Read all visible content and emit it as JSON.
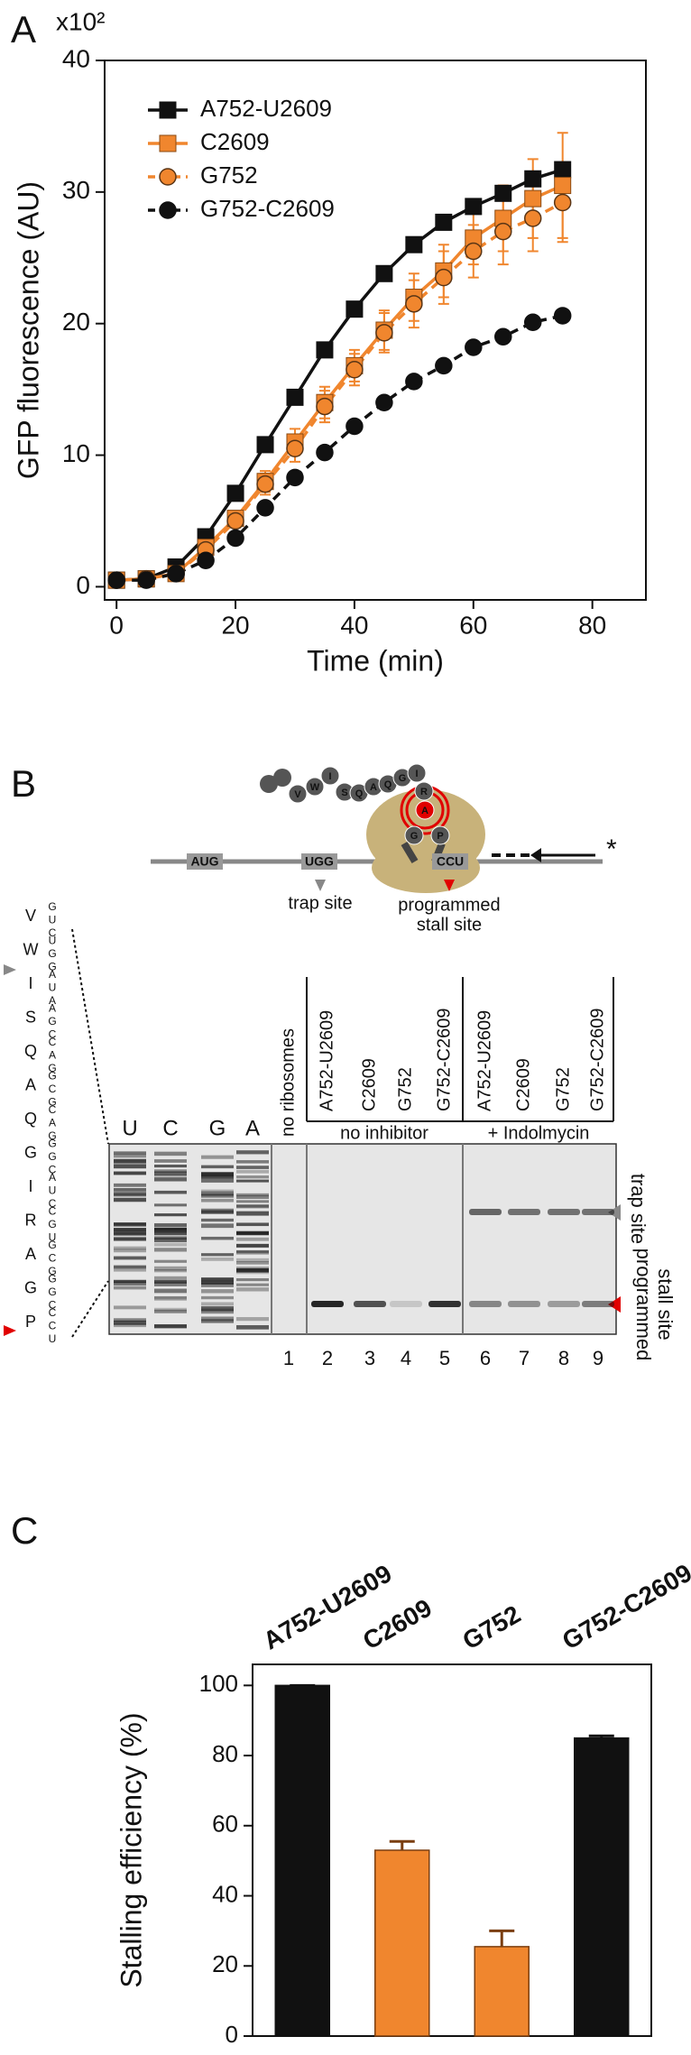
{
  "chart_data": [
    {
      "type": "line",
      "panel_label": "A",
      "y_multiplier": "x10²",
      "x_label": "Time (min)",
      "y_label": "GFP fluorescence (AU)",
      "x": [
        0,
        5,
        10,
        15,
        20,
        25,
        30,
        35,
        40,
        45,
        50,
        55,
        60,
        65,
        70,
        75
      ],
      "xlim": [
        -2,
        89
      ],
      "xticks": [
        0,
        20,
        40,
        60,
        80
      ],
      "ylim": [
        -1,
        40
      ],
      "yticks": [
        0,
        10,
        20,
        30,
        40
      ],
      "legend": "upper left",
      "series": [
        {
          "name": "A752-U2609",
          "color": "#111111",
          "marker": "square",
          "marker_fill": "#111111",
          "linestyle": "solid",
          "values": [
            0.5,
            0.6,
            1.5,
            3.8,
            7.1,
            10.8,
            14.4,
            18,
            21.1,
            23.8,
            26,
            27.7,
            28.9,
            29.9,
            31,
            31.7
          ]
        },
        {
          "name": "C2609",
          "color": "#f0862e",
          "marker": "square",
          "marker_fill": "#f0862e",
          "linestyle": "solid",
          "values": [
            0.5,
            0.6,
            1,
            3,
            5.2,
            8,
            11,
            14,
            16.8,
            19.5,
            22,
            24,
            26.5,
            28,
            29.5,
            30.5
          ],
          "errors": [
            0,
            0,
            0,
            0.3,
            0.5,
            0.8,
            1,
            1.2,
            1.2,
            1.5,
            1.8,
            2,
            2,
            2.5,
            3,
            4
          ]
        },
        {
          "name": "G752",
          "color": "#f0862e",
          "marker": "circle",
          "marker_fill": "#f0862e",
          "linestyle": "dashed",
          "values": [
            0.5,
            0.6,
            1,
            2.8,
            5,
            7.8,
            10.5,
            13.7,
            16.5,
            19.3,
            21.5,
            23.5,
            25.5,
            27,
            28,
            29.2
          ],
          "errors": [
            0,
            0,
            0,
            0.3,
            0.5,
            0.8,
            1,
            1.2,
            1.2,
            1.5,
            1.8,
            2,
            2,
            2.5,
            2.5,
            3
          ]
        },
        {
          "name": "G752-C2609",
          "color": "#111111",
          "marker": "circle",
          "marker_fill": "#111111",
          "linestyle": "dashed",
          "values": [
            0.5,
            0.5,
            1,
            2,
            3.7,
            6,
            8.3,
            10.2,
            12.2,
            14,
            15.6,
            16.8,
            18.2,
            19,
            20.1,
            20.6
          ]
        }
      ]
    },
    {
      "type": "bar",
      "panel_label": "C",
      "y_label": "Stalling efficiency (%)",
      "categories": [
        "A752-U2609",
        "C2609",
        "G752",
        "G752-C2609"
      ],
      "colors": [
        "#111111",
        "#f0862e",
        "#f0862e",
        "#111111"
      ],
      "values": [
        100,
        53,
        25.5,
        85
      ],
      "errors": [
        0,
        2.5,
        4.5,
        0.6
      ],
      "ylim": [
        0,
        106
      ],
      "yticks": [
        0,
        20,
        40,
        60,
        80,
        100
      ]
    }
  ],
  "panel_b": {
    "label": "B",
    "mrna_codons": [
      "AUG",
      "UGG",
      "CCU"
    ],
    "trap_site": "trap site",
    "stall_site": [
      "programmed",
      "stall site"
    ],
    "residues": [
      "V",
      "W",
      "I",
      "S",
      "Q",
      "A",
      "Q",
      "G",
      "I",
      "R",
      "A",
      "G",
      "P"
    ],
    "sequence": [
      "GUC",
      "UGG",
      "AUA",
      "AGC",
      "CAG",
      "GCG",
      "CAG",
      "GGC",
      "AUC",
      "CGU",
      "GCG",
      "GGC",
      "CCU"
    ],
    "ladder": [
      "U",
      "C",
      "G",
      "A"
    ],
    "no_ribosomes": "no ribosomes",
    "variants": [
      {
        "name": "A752-U2609",
        "color": "#111111"
      },
      {
        "name": "C2609",
        "color": "#f0862e"
      },
      {
        "name": "G752",
        "color": "#f0862e"
      },
      {
        "name": "G752-C2609",
        "color": "#111111"
      }
    ],
    "conditions": [
      "no inhibitor",
      "+ Indolmycin"
    ],
    "lanes": [
      1,
      2,
      3,
      4,
      5,
      6,
      7,
      8,
      9
    ]
  }
}
